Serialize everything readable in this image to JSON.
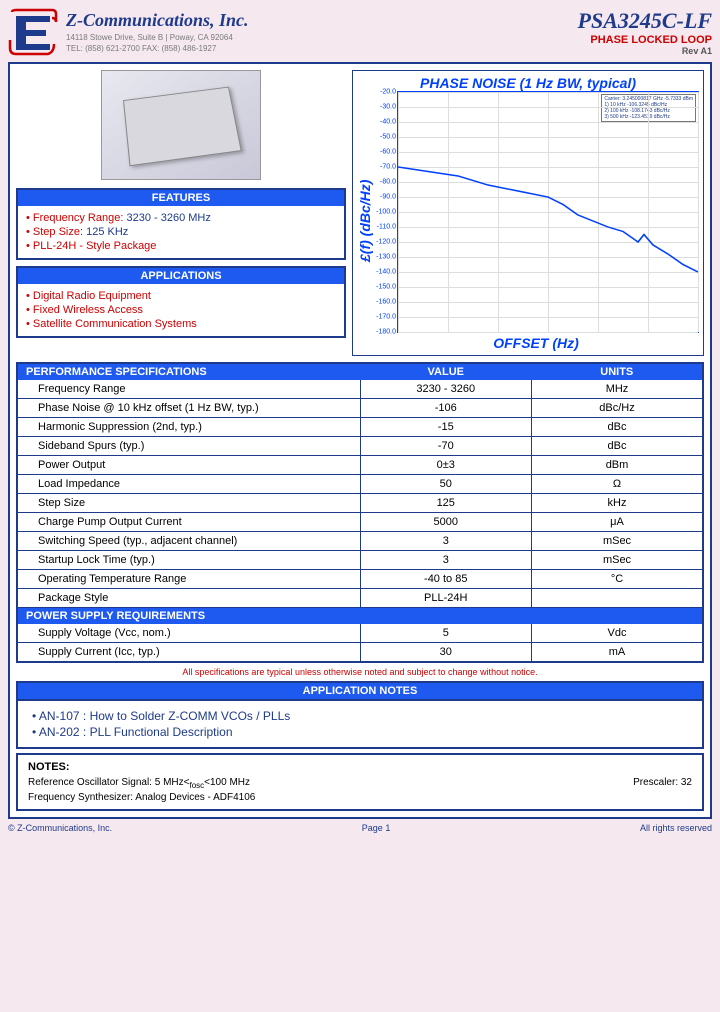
{
  "company": {
    "name": "Z-Communications, Inc.",
    "address": "14118 Stowe Drive, Suite B | Poway, CA 92064",
    "contact": "TEL: (858) 621-2700    FAX: (858) 486-1927"
  },
  "product": {
    "part_number": "PSA3245C-LF",
    "type": "PHASE LOCKED LOOP",
    "revision": "Rev  A1"
  },
  "features": {
    "title": "FEATURES",
    "items": [
      {
        "label": "• Frequency Range:",
        "value": "3230  - 3260 MHz"
      },
      {
        "label": "• Step Size:",
        "value": "125  KHz"
      },
      {
        "label": "• PLL-24H - Style Package",
        "value": ""
      }
    ]
  },
  "applications": {
    "title": "APPLICATIONS",
    "items": [
      "• Digital Radio Equipment",
      "• Fixed Wireless Access",
      "• Satellite Communication Systems"
    ]
  },
  "chart": {
    "title": "PHASE NOISE (1 Hz BW, typical)",
    "ylabel": "£(f) (dBc/Hz)",
    "xlabel": "OFFSET (Hz)",
    "ylim": [
      -180,
      -20
    ],
    "ytick_step": 10,
    "line_color": "#0040ff",
    "grid_color": "#dddddd",
    "background": "#ffffff",
    "data_points": [
      {
        "logx": 0.0,
        "y": -70
      },
      {
        "logx": 0.1,
        "y": -73
      },
      {
        "logx": 0.2,
        "y": -76
      },
      {
        "logx": 0.3,
        "y": -82
      },
      {
        "logx": 0.4,
        "y": -86
      },
      {
        "logx": 0.5,
        "y": -90
      },
      {
        "logx": 0.55,
        "y": -95
      },
      {
        "logx": 0.6,
        "y": -102
      },
      {
        "logx": 0.65,
        "y": -106
      },
      {
        "logx": 0.7,
        "y": -110
      },
      {
        "logx": 0.75,
        "y": -113
      },
      {
        "logx": 0.8,
        "y": -120
      },
      {
        "logx": 0.82,
        "y": -115
      },
      {
        "logx": 0.85,
        "y": -122
      },
      {
        "logx": 0.9,
        "y": -128
      },
      {
        "logx": 0.95,
        "y": -135
      },
      {
        "logx": 1.0,
        "y": -140
      }
    ],
    "legend": "Carrier: 3.245000817 GHz   -5.7333 dBm\n1)   10 kHz     -106.3245 dBc/Hz\n2)  100 kHz     -108.1743 dBc/Hz\n3)  500 kHz     -123.4519 dBc/Hz"
  },
  "specs": {
    "header": {
      "c1": "PERFORMANCE SPECIFICATIONS",
      "c2": "VALUE",
      "c3": "UNITS"
    },
    "rows": [
      {
        "param": "Frequency Range",
        "value": "3230 - 3260",
        "units": "MHz"
      },
      {
        "param": "Phase Noise @ 10 kHz offset (1 Hz BW, typ.)",
        "value": "-106",
        "units": "dBc/Hz"
      },
      {
        "param": "Harmonic Suppression (2nd, typ.)",
        "value": "-15",
        "units": "dBc"
      },
      {
        "param": "Sideband Spurs (typ.)",
        "value": "-70",
        "units": "dBc"
      },
      {
        "param": "Power Output",
        "value": "0±3",
        "units": "dBm"
      },
      {
        "param": "Load Impedance",
        "value": "50",
        "units": "Ω"
      },
      {
        "param": "Step Size",
        "value": "125",
        "units": "kHz"
      },
      {
        "param": "Charge Pump Output Current",
        "value": "5000",
        "units": "μA"
      },
      {
        "param": "Switching Speed (typ., adjacent channel)",
        "value": "3",
        "units": "mSec"
      },
      {
        "param": "Startup Lock Time (typ.)",
        "value": "3",
        "units": "mSec"
      },
      {
        "param": "Operating Temperature Range",
        "value": "-40 to 85",
        "units": "°C"
      },
      {
        "param": "Package Style",
        "value": "PLL-24H",
        "units": ""
      }
    ],
    "power_header": "POWER SUPPLY REQUIREMENTS",
    "power_rows": [
      {
        "param": "Supply Voltage (Vcc, nom.)",
        "value": "5",
        "units": "Vdc"
      },
      {
        "param": "Supply Current (Icc, typ.)",
        "value": "30",
        "units": "mA"
      }
    ],
    "note": "All specifications are typical unless otherwise noted and subject to change without notice."
  },
  "app_notes": {
    "title": "APPLICATION NOTES",
    "items": [
      "• AN-107 : How to Solder Z-COMM VCOs / PLLs",
      "• AN-202 : PLL Functional Description"
    ]
  },
  "notes": {
    "title": "NOTES:",
    "ref_osc_label": "Reference Oscillator Signal:  5 MHz<",
    "ref_osc_sub": "fosc",
    "ref_osc_end": "<100 MHz",
    "prescaler": "Prescaler:  32",
    "synth": "Frequency Synthesizer:  Analog Devices  -  ADF4106"
  },
  "footer": {
    "copyright": "© Z-Communications, Inc.",
    "page": "Page 1",
    "rights": "All rights reserved"
  }
}
